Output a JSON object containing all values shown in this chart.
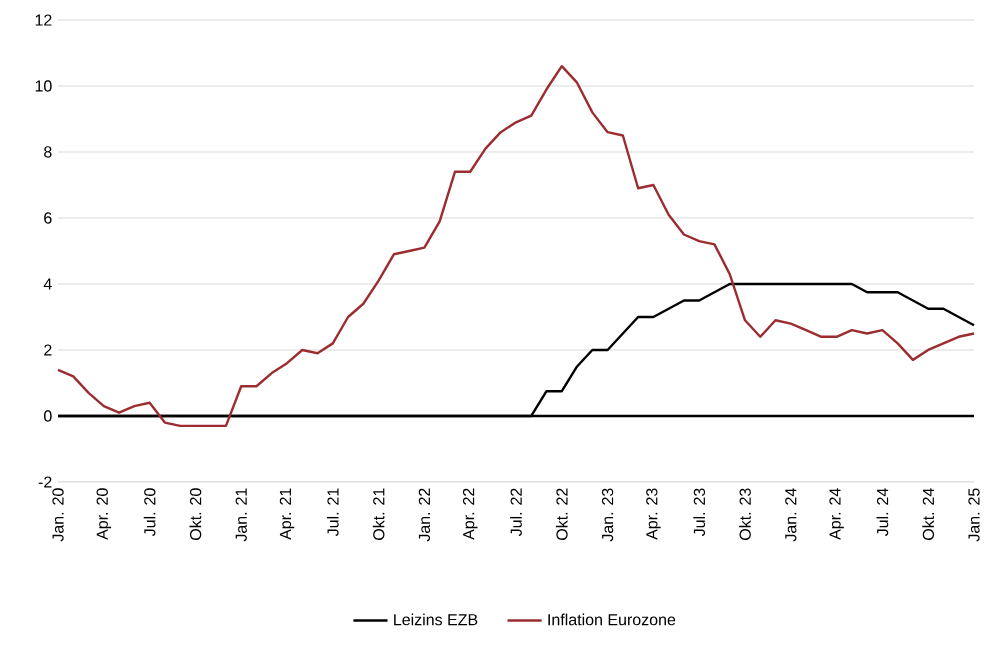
{
  "chart_data": {
    "type": "line",
    "categories": [
      "Jan. 20",
      null,
      null,
      "Apr. 20",
      null,
      null,
      "Jul. 20",
      null,
      null,
      "Okt. 20",
      null,
      null,
      "Jan. 21",
      null,
      null,
      "Apr. 21",
      null,
      null,
      "Jul. 21",
      null,
      null,
      "Okt. 21",
      null,
      null,
      "Jan. 22",
      null,
      null,
      "Apr. 22",
      null,
      null,
      "Jul. 22",
      null,
      null,
      "Okt. 22",
      null,
      null,
      "Jan. 23",
      null,
      null,
      "Apr. 23",
      null,
      null,
      "Jul. 23",
      null,
      null,
      "Okt. 23",
      null,
      null,
      "Jan. 24",
      null,
      null,
      "Apr. 24",
      null,
      null,
      "Jul. 24",
      null,
      null,
      "Okt. 24",
      null,
      null,
      "Jan. 25"
    ],
    "series": [
      {
        "name": "Leizins EZB",
        "color": "#000000",
        "values": [
          0,
          0,
          0,
          0,
          0,
          0,
          0,
          0,
          0,
          0,
          0,
          0,
          0,
          0,
          0,
          0,
          0,
          0,
          0,
          0,
          0,
          0,
          0,
          0,
          0,
          0,
          0,
          0,
          0,
          0,
          0,
          0,
          0.75,
          0.75,
          1.5,
          2.0,
          2.0,
          2.5,
          3.0,
          3.0,
          3.25,
          3.5,
          3.5,
          3.75,
          4.0,
          4.0,
          4.0,
          4.0,
          4.0,
          4.0,
          4.0,
          4.0,
          4.0,
          3.75,
          3.75,
          3.75,
          3.5,
          3.25,
          3.25,
          3.0,
          2.75
        ]
      },
      {
        "name": "Inflation Eurozone",
        "color": "#9b2d30",
        "values": [
          1.4,
          1.2,
          0.7,
          0.3,
          0.1,
          0.3,
          0.4,
          -0.2,
          -0.3,
          -0.3,
          -0.3,
          -0.3,
          0.9,
          0.9,
          1.3,
          1.6,
          2.0,
          1.9,
          2.2,
          3.0,
          3.4,
          4.1,
          4.9,
          5.0,
          5.1,
          5.9,
          7.4,
          7.4,
          8.1,
          8.6,
          8.9,
          9.1,
          9.9,
          10.6,
          10.1,
          9.2,
          8.6,
          8.5,
          6.9,
          7.0,
          6.1,
          5.5,
          5.3,
          5.2,
          4.3,
          2.9,
          2.4,
          2.9,
          2.8,
          2.6,
          2.4,
          2.4,
          2.6,
          2.5,
          2.6,
          2.2,
          1.7,
          2.0,
          2.2,
          2.4,
          2.5
        ]
      }
    ],
    "ylim": [
      -2,
      12
    ],
    "yticks": [
      -2,
      0,
      2,
      4,
      6,
      8,
      10,
      12
    ],
    "grid": "y",
    "legend": "bottom",
    "line_style": "solid",
    "marker": "none"
  }
}
